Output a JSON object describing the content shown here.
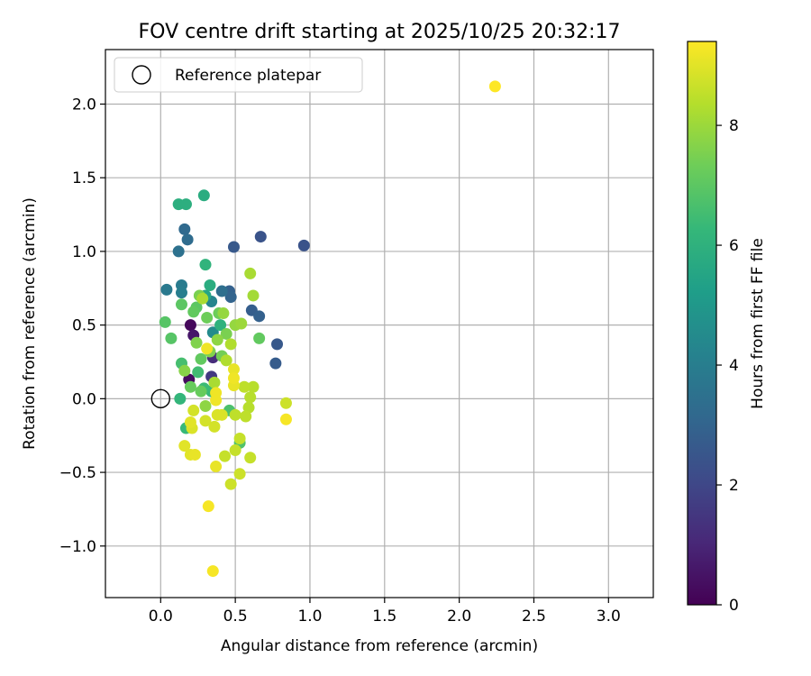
{
  "chart_data": {
    "type": "scatter",
    "title": "FOV centre drift starting at 2025/10/25 20:32:17",
    "xlabel": "Angular distance from reference (arcmin)",
    "ylabel": "Rotation from reference (arcmin)",
    "xlim": [
      -0.37,
      3.3
    ],
    "ylim": [
      -1.35,
      2.37
    ],
    "xticks": [
      0.0,
      0.5,
      1.0,
      1.5,
      2.0,
      2.5,
      3.0
    ],
    "xtick_labels": [
      "0.0",
      "0.5",
      "1.0",
      "1.5",
      "2.0",
      "2.5",
      "3.0"
    ],
    "yticks": [
      -1.0,
      -0.5,
      0.0,
      0.5,
      1.0,
      1.5,
      2.0
    ],
    "ytick_labels": [
      "−1.0",
      "−0.5",
      "0.0",
      "0.5",
      "1.0",
      "1.5",
      "2.0"
    ],
    "grid": true,
    "legend": {
      "position": "top-left",
      "label": "Reference platepar"
    },
    "reference_point": {
      "x": 0.0,
      "y": 0.0
    },
    "colorbar": {
      "label": "Hours from first FF file",
      "min": 0,
      "max": 9.4,
      "ticks": [
        0,
        2,
        4,
        6,
        8
      ],
      "tick_labels": [
        "0",
        "2",
        "4",
        "6",
        "8"
      ],
      "colormap": "viridis"
    },
    "points": [
      {
        "x": 0.2,
        "y": 0.5,
        "h": 0.2
      },
      {
        "x": 0.19,
        "y": 0.13,
        "h": 0.3
      },
      {
        "x": 0.22,
        "y": 0.43,
        "h": 0.6
      },
      {
        "x": 0.35,
        "y": 0.28,
        "h": 1.2
      },
      {
        "x": 0.34,
        "y": 0.15,
        "h": 1.6
      },
      {
        "x": 0.96,
        "y": 1.04,
        "h": 2.4
      },
      {
        "x": 0.67,
        "y": 1.1,
        "h": 2.4
      },
      {
        "x": 0.49,
        "y": 1.03,
        "h": 2.6
      },
      {
        "x": 0.78,
        "y": 0.37,
        "h": 2.6
      },
      {
        "x": 0.77,
        "y": 0.24,
        "h": 2.7
      },
      {
        "x": 0.61,
        "y": 0.6,
        "h": 2.8
      },
      {
        "x": 0.66,
        "y": 0.56,
        "h": 2.9
      },
      {
        "x": 0.46,
        "y": 0.73,
        "h": 2.9
      },
      {
        "x": 0.47,
        "y": 0.69,
        "h": 3.0
      },
      {
        "x": 0.16,
        "y": 1.15,
        "h": 3.2
      },
      {
        "x": 0.18,
        "y": 1.08,
        "h": 3.3
      },
      {
        "x": 0.12,
        "y": 1.0,
        "h": 3.5
      },
      {
        "x": 0.41,
        "y": 0.73,
        "h": 3.4
      },
      {
        "x": 0.04,
        "y": 0.74,
        "h": 3.8
      },
      {
        "x": 0.14,
        "y": 0.77,
        "h": 3.9
      },
      {
        "x": 0.14,
        "y": 0.72,
        "h": 4.0
      },
      {
        "x": 0.34,
        "y": 0.66,
        "h": 4.3
      },
      {
        "x": 0.35,
        "y": 0.45,
        "h": 4.5
      },
      {
        "x": 0.3,
        "y": 0.7,
        "h": 5.5
      },
      {
        "x": 0.33,
        "y": 0.77,
        "h": 5.8
      },
      {
        "x": 0.29,
        "y": 1.38,
        "h": 5.8
      },
      {
        "x": 0.12,
        "y": 1.32,
        "h": 5.9
      },
      {
        "x": 0.17,
        "y": 1.32,
        "h": 5.9
      },
      {
        "x": 0.3,
        "y": 0.91,
        "h": 6.1
      },
      {
        "x": 0.4,
        "y": 0.5,
        "h": 6.0
      },
      {
        "x": 0.13,
        "y": 0.0,
        "h": 6.2
      },
      {
        "x": 0.17,
        "y": -0.2,
        "h": 6.3
      },
      {
        "x": 0.34,
        "y": 0.05,
        "h": 6.3
      },
      {
        "x": 0.29,
        "y": 0.07,
        "h": 6.4
      },
      {
        "x": 0.25,
        "y": 0.18,
        "h": 6.5
      },
      {
        "x": 0.14,
        "y": 0.24,
        "h": 6.6
      },
      {
        "x": 0.46,
        "y": -0.08,
        "h": 6.7
      },
      {
        "x": 0.53,
        "y": -0.3,
        "h": 6.8
      },
      {
        "x": 0.03,
        "y": 0.52,
        "h": 6.9
      },
      {
        "x": 0.07,
        "y": 0.41,
        "h": 6.9
      },
      {
        "x": 0.14,
        "y": 0.64,
        "h": 7.0
      },
      {
        "x": 0.24,
        "y": 0.62,
        "h": 7.0
      },
      {
        "x": 0.22,
        "y": 0.59,
        "h": 7.1
      },
      {
        "x": 0.66,
        "y": 0.41,
        "h": 7.1
      },
      {
        "x": 0.27,
        "y": 0.27,
        "h": 7.1
      },
      {
        "x": 0.2,
        "y": 0.08,
        "h": 7.2
      },
      {
        "x": 0.27,
        "y": 0.05,
        "h": 7.2
      },
      {
        "x": 0.31,
        "y": 0.55,
        "h": 7.3
      },
      {
        "x": 0.39,
        "y": 0.58,
        "h": 7.3
      },
      {
        "x": 0.41,
        "y": 0.29,
        "h": 7.4
      },
      {
        "x": 0.44,
        "y": 0.44,
        "h": 7.5
      },
      {
        "x": 0.26,
        "y": 0.7,
        "h": 7.5
      },
      {
        "x": 0.33,
        "y": 0.32,
        "h": 7.6
      },
      {
        "x": 0.24,
        "y": 0.38,
        "h": 7.6
      },
      {
        "x": 0.16,
        "y": 0.19,
        "h": 7.7
      },
      {
        "x": 0.3,
        "y": -0.05,
        "h": 7.8
      },
      {
        "x": 0.38,
        "y": 0.4,
        "h": 7.8
      },
      {
        "x": 0.42,
        "y": 0.58,
        "h": 7.9
      },
      {
        "x": 0.5,
        "y": 0.5,
        "h": 7.9
      },
      {
        "x": 0.54,
        "y": 0.51,
        "h": 8.0
      },
      {
        "x": 0.62,
        "y": 0.7,
        "h": 8.1
      },
      {
        "x": 0.6,
        "y": 0.85,
        "h": 8.2
      },
      {
        "x": 0.28,
        "y": 0.68,
        "h": 8.2
      },
      {
        "x": 0.36,
        "y": 0.11,
        "h": 8.2
      },
      {
        "x": 0.44,
        "y": 0.26,
        "h": 8.3
      },
      {
        "x": 0.47,
        "y": 0.37,
        "h": 8.3
      },
      {
        "x": 0.59,
        "y": -0.06,
        "h": 8.4
      },
      {
        "x": 0.6,
        "y": 0.01,
        "h": 8.4
      },
      {
        "x": 0.62,
        "y": 0.08,
        "h": 8.4
      },
      {
        "x": 0.56,
        "y": 0.08,
        "h": 8.5
      },
      {
        "x": 0.5,
        "y": -0.11,
        "h": 8.5
      },
      {
        "x": 0.57,
        "y": -0.12,
        "h": 8.5
      },
      {
        "x": 0.53,
        "y": -0.27,
        "h": 8.6
      },
      {
        "x": 0.5,
        "y": -0.35,
        "h": 8.6
      },
      {
        "x": 0.43,
        "y": -0.39,
        "h": 8.6
      },
      {
        "x": 0.6,
        "y": -0.4,
        "h": 8.6
      },
      {
        "x": 0.47,
        "y": -0.58,
        "h": 8.7
      },
      {
        "x": 0.53,
        "y": -0.51,
        "h": 8.7
      },
      {
        "x": 0.84,
        "y": -0.03,
        "h": 8.7
      },
      {
        "x": 0.22,
        "y": -0.08,
        "h": 8.8
      },
      {
        "x": 0.3,
        "y": -0.15,
        "h": 8.8
      },
      {
        "x": 0.36,
        "y": -0.19,
        "h": 8.8
      },
      {
        "x": 0.41,
        "y": -0.11,
        "h": 8.9
      },
      {
        "x": 0.38,
        "y": -0.11,
        "h": 8.9
      },
      {
        "x": 0.21,
        "y": -0.2,
        "h": 8.9
      },
      {
        "x": 0.2,
        "y": -0.16,
        "h": 9.0
      },
      {
        "x": 0.16,
        "y": -0.32,
        "h": 9.0
      },
      {
        "x": 0.2,
        "y": -0.38,
        "h": 9.0
      },
      {
        "x": 0.23,
        "y": -0.38,
        "h": 9.1
      },
      {
        "x": 0.37,
        "y": -0.46,
        "h": 9.1
      },
      {
        "x": 0.49,
        "y": 0.2,
        "h": 9.1
      },
      {
        "x": 0.49,
        "y": 0.09,
        "h": 9.1
      },
      {
        "x": 0.37,
        "y": 0.04,
        "h": 9.2
      },
      {
        "x": 0.37,
        "y": -0.01,
        "h": 9.2
      },
      {
        "x": 0.49,
        "y": 0.14,
        "h": 9.2
      },
      {
        "x": 0.31,
        "y": 0.34,
        "h": 9.2
      },
      {
        "x": 0.84,
        "y": -0.14,
        "h": 9.3
      },
      {
        "x": 0.32,
        "y": -0.73,
        "h": 9.3
      },
      {
        "x": 0.35,
        "y": -1.17,
        "h": 9.3
      },
      {
        "x": 2.24,
        "y": 2.12,
        "h": 9.4
      }
    ]
  }
}
